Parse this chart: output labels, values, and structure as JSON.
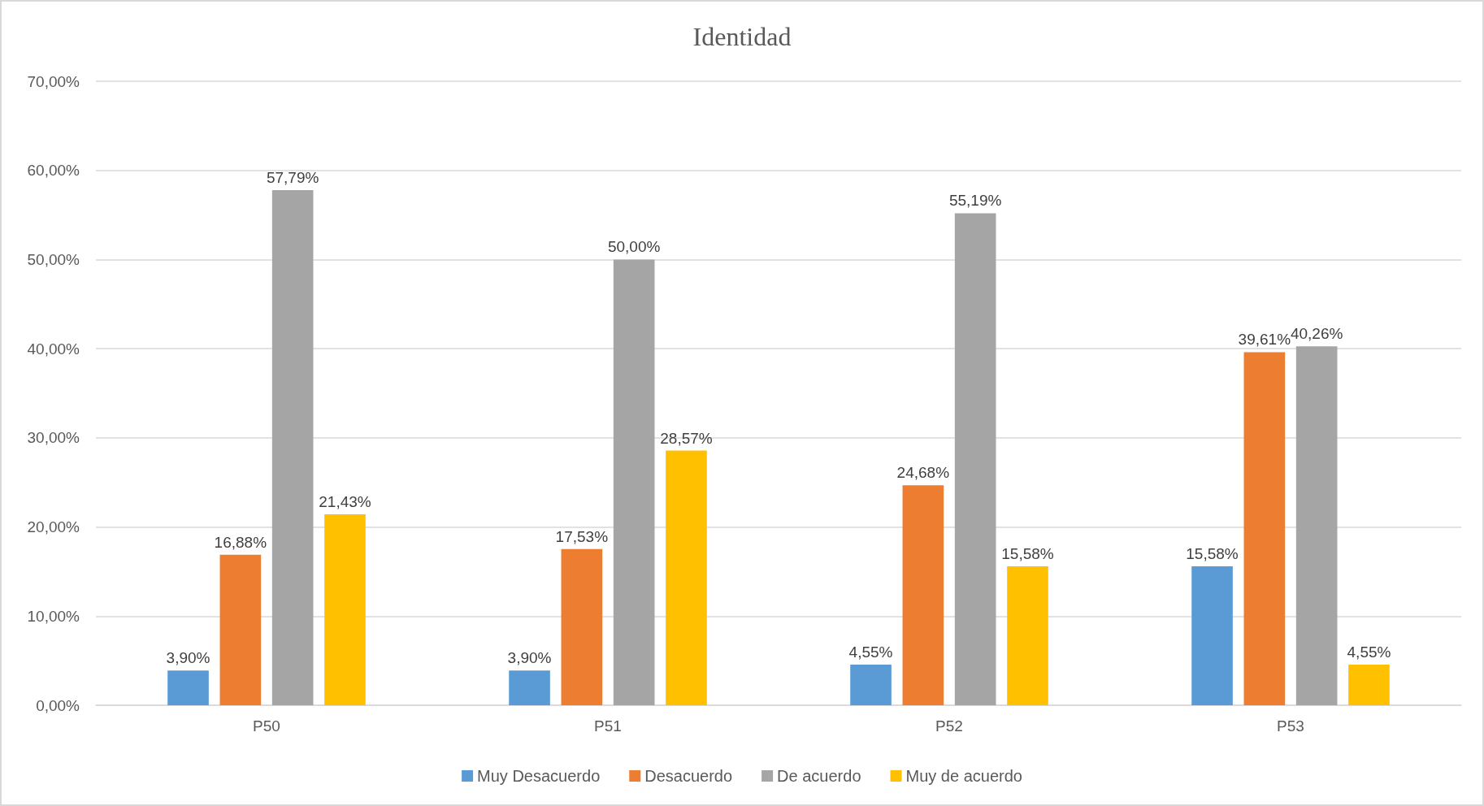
{
  "chart_data": {
    "type": "bar",
    "title": "Identidad",
    "categories": [
      "P50",
      "P51",
      "P52",
      "P53"
    ],
    "series": [
      {
        "name": "Muy Desacuerdo",
        "color": "#5b9bd5",
        "values": [
          3.9,
          3.9,
          4.55,
          15.58
        ],
        "value_labels": [
          "3,90%",
          "3,90%",
          "4,55%",
          "15,58%"
        ]
      },
      {
        "name": "Desacuerdo",
        "color": "#ed7d31",
        "values": [
          16.88,
          17.53,
          24.68,
          39.61
        ],
        "value_labels": [
          "16,88%",
          "17,53%",
          "24,68%",
          "39,61%"
        ]
      },
      {
        "name": "De acuerdo",
        "color": "#a5a5a5",
        "values": [
          57.79,
          50.0,
          55.19,
          40.26
        ],
        "value_labels": [
          "57,79%",
          "50,00%",
          "55,19%",
          "40,26%"
        ]
      },
      {
        "name": "Muy de acuerdo",
        "color": "#ffc000",
        "values": [
          21.43,
          28.57,
          15.58,
          4.55
        ],
        "value_labels": [
          "21,43%",
          "28,57%",
          "15,58%",
          "4,55%"
        ]
      }
    ],
    "ylim": [
      0,
      70
    ],
    "yticks": [
      {
        "value": 0,
        "label": "0,00%"
      },
      {
        "value": 10,
        "label": "10,00%"
      },
      {
        "value": 20,
        "label": "20,00%"
      },
      {
        "value": 30,
        "label": "30,00%"
      },
      {
        "value": 40,
        "label": "40,00%"
      },
      {
        "value": 50,
        "label": "50,00%"
      },
      {
        "value": 60,
        "label": "60,00%"
      },
      {
        "value": 70,
        "label": "70,00%"
      }
    ],
    "grid": "y",
    "legend": "bottom"
  }
}
